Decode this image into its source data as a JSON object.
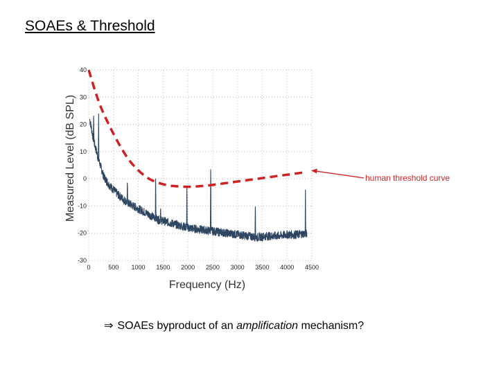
{
  "slide": {
    "title": "SOAEs & Threshold",
    "conclusion_arrow": "⇒",
    "conclusion_before": "SOAEs byproduct of an ",
    "conclusion_emphasis": "amplification",
    "conclusion_after": " mechanism?"
  },
  "colors": {
    "spectrum": "#2e4560",
    "threshold": "#cc2222",
    "grid": "#b8b8b8",
    "annotation": "#cc2222"
  },
  "chart_data": {
    "type": "line",
    "xlabel": "Frequency (Hz)",
    "ylabel": "Measured Level (dB SPL)",
    "xlim": [
      0,
      4500
    ],
    "ylim": [
      -30,
      40
    ],
    "x_ticks": [
      "0",
      "500",
      "1000",
      "1500",
      "2000",
      "2500",
      "3000",
      "3500",
      "4000",
      "4500"
    ],
    "y_ticks": [
      "40",
      "30",
      "20",
      "10",
      "0",
      "-10",
      "-20",
      "-30"
    ],
    "grid": true,
    "annotation": "human threshold curve",
    "series": [
      {
        "style": "noisy-line",
        "x": [
          20,
          100,
          200,
          300,
          400,
          500,
          600,
          700,
          800,
          900,
          1000,
          1200,
          1400,
          1600,
          1800,
          2000,
          2200,
          2400,
          2600,
          2800,
          3000,
          3200,
          3400,
          3600,
          3800,
          4000,
          4200,
          4400
        ],
        "y": [
          22,
          14,
          7,
          1,
          -2,
          -4,
          -6,
          -7.5,
          -9,
          -10,
          -11,
          -13,
          -15,
          -16,
          -17,
          -18,
          -18.5,
          -19,
          -19.5,
          -20,
          -20.5,
          -21,
          -21.5,
          -21,
          -21,
          -20.5,
          -20.5,
          -20
        ],
        "peaks": [
          {
            "x": 100,
            "y": 25
          },
          {
            "x": 200,
            "y": 24
          },
          {
            "x": 780,
            "y": 0
          },
          {
            "x": 1350,
            "y": 3
          },
          {
            "x": 1450,
            "y": -10
          },
          {
            "x": 1980,
            "y": 0
          },
          {
            "x": 2460,
            "y": 8
          },
          {
            "x": 3360,
            "y": -8
          },
          {
            "x": 4370,
            "y": -4
          }
        ]
      },
      {
        "style": "dashed",
        "x": [
          0,
          200,
          400,
          600,
          800,
          1000,
          1200,
          1400,
          1600,
          1800,
          2000,
          2200,
          2400,
          2600,
          2800,
          3000,
          3200,
          3400,
          3600,
          3800,
          4000,
          4200,
          4400
        ],
        "y": [
          40,
          28,
          20,
          13,
          7,
          3,
          0,
          -1.5,
          -2.5,
          -2.8,
          -3,
          -2.8,
          -2.5,
          -2,
          -1.5,
          -1,
          -0.5,
          0,
          0.5,
          1,
          1.5,
          2,
          2.5
        ]
      }
    ]
  }
}
